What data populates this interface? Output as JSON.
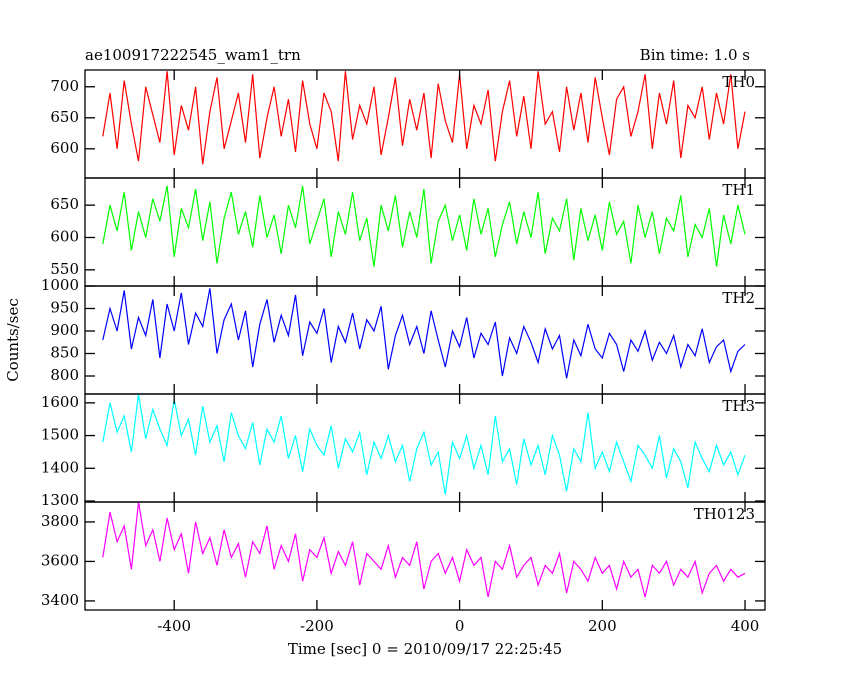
{
  "chart_data": {
    "type": "line",
    "title": "ae100917222545_wam1_trn",
    "subtitle": "Bin time: 1.0 s",
    "x_label": "Time [sec] 0 = 2010/09/17 22:25:45",
    "y_label": "Counts/sec",
    "xlim": [
      -525,
      428
    ],
    "xticks": [
      -400,
      -200,
      0,
      200,
      400
    ],
    "x": [
      -500,
      -490,
      -480,
      -470,
      -460,
      -450,
      -440,
      -430,
      -420,
      -410,
      -400,
      -390,
      -380,
      -370,
      -360,
      -350,
      -340,
      -330,
      -320,
      -310,
      -300,
      -290,
      -280,
      -270,
      -260,
      -250,
      -240,
      -230,
      -220,
      -210,
      -200,
      -190,
      -180,
      -170,
      -160,
      -150,
      -140,
      -130,
      -120,
      -110,
      -100,
      -90,
      -80,
      -70,
      -60,
      -50,
      -40,
      -30,
      -20,
      -10,
      0,
      10,
      20,
      30,
      40,
      50,
      60,
      70,
      80,
      90,
      100,
      110,
      120,
      130,
      140,
      150,
      160,
      170,
      180,
      190,
      200,
      210,
      220,
      230,
      240,
      250,
      260,
      270,
      280,
      290,
      300,
      310,
      320,
      330,
      340,
      350,
      360,
      370,
      380,
      390,
      400
    ],
    "series": [
      {
        "name": "TH0",
        "color": "#ff0000",
        "ylim": [
          553,
          727
        ],
        "yticks": [
          600,
          650,
          700
        ],
        "values": [
          620,
          690,
          600,
          710,
          640,
          580,
          700,
          655,
          610,
          725,
          590,
          670,
          630,
          700,
          575,
          660,
          715,
          600,
          645,
          690,
          610,
          720,
          585,
          650,
          700,
          620,
          680,
          595,
          710,
          640,
          600,
          690,
          660,
          580,
          725,
          615,
          670,
          640,
          700,
          590,
          650,
          715,
          605,
          680,
          630,
          690,
          585,
          705,
          645,
          610,
          720,
          600,
          670,
          640,
          695,
          580,
          660,
          710,
          620,
          685,
          600,
          725,
          640,
          660,
          595,
          700,
          630,
          690,
          610,
          715,
          650,
          590,
          680,
          700,
          620,
          660,
          720,
          600,
          690,
          640,
          710,
          585,
          670,
          650,
          700,
          615,
          690,
          640,
          720,
          600,
          660
        ]
      },
      {
        "name": "TH1",
        "color": "#00ff00",
        "ylim": [
          525,
          692
        ],
        "yticks": [
          550,
          600,
          650
        ],
        "values": [
          590,
          650,
          610,
          670,
          580,
          640,
          600,
          660,
          625,
          680,
          570,
          645,
          615,
          675,
          595,
          655,
          560,
          630,
          670,
          605,
          640,
          585,
          665,
          600,
          635,
          575,
          650,
          615,
          680,
          590,
          625,
          660,
          570,
          640,
          605,
          670,
          595,
          630,
          555,
          650,
          610,
          665,
          585,
          640,
          600,
          675,
          560,
          625,
          650,
          595,
          635,
          580,
          660,
          605,
          645,
          570,
          620,
          655,
          590,
          640,
          600,
          670,
          575,
          630,
          610,
          660,
          565,
          645,
          595,
          635,
          580,
          655,
          605,
          625,
          560,
          650,
          600,
          640,
          575,
          630,
          610,
          665,
          570,
          620,
          600,
          645,
          555,
          635,
          590,
          650,
          605
        ]
      },
      {
        "name": "TH2",
        "color": "#0000ff",
        "ylim": [
          760,
          1000
        ],
        "yticks": [
          800,
          850,
          900,
          950,
          1000
        ],
        "values": [
          880,
          950,
          900,
          990,
          860,
          930,
          890,
          970,
          840,
          960,
          900,
          985,
          870,
          940,
          910,
          995,
          850,
          925,
          960,
          880,
          945,
          820,
          915,
          970,
          875,
          935,
          890,
          980,
          845,
          920,
          895,
          950,
          830,
          910,
          875,
          940,
          860,
          925,
          900,
          955,
          815,
          890,
          935,
          870,
          910,
          850,
          945,
          880,
          820,
          900,
          865,
          930,
          840,
          895,
          870,
          920,
          800,
          885,
          850,
          910,
          875,
          830,
          905,
          860,
          890,
          795,
          880,
          845,
          915,
          860,
          840,
          895,
          870,
          810,
          880,
          855,
          900,
          835,
          875,
          850,
          890,
          820,
          870,
          845,
          905,
          830,
          865,
          880,
          810,
          855,
          870
        ]
      },
      {
        "name": "TH3",
        "color": "#00ffff",
        "ylim": [
          1297,
          1627
        ],
        "yticks": [
          1300,
          1400,
          1500,
          1600
        ],
        "values": [
          1480,
          1600,
          1510,
          1560,
          1450,
          1627,
          1490,
          1580,
          1520,
          1470,
          1610,
          1500,
          1550,
          1440,
          1590,
          1480,
          1530,
          1420,
          1570,
          1500,
          1460,
          1540,
          1410,
          1520,
          1480,
          1560,
          1430,
          1500,
          1390,
          1520,
          1470,
          1440,
          1530,
          1400,
          1490,
          1450,
          1510,
          1380,
          1480,
          1430,
          1500,
          1420,
          1470,
          1360,
          1460,
          1510,
          1410,
          1450,
          1320,
          1480,
          1430,
          1500,
          1400,
          1470,
          1380,
          1560,
          1420,
          1460,
          1350,
          1490,
          1410,
          1470,
          1380,
          1500,
          1440,
          1330,
          1460,
          1420,
          1570,
          1400,
          1450,
          1390,
          1480,
          1420,
          1360,
          1470,
          1440,
          1400,
          1500,
          1370,
          1460,
          1420,
          1340,
          1480,
          1430,
          1390,
          1470,
          1410,
          1450,
          1380,
          1440
        ]
      },
      {
        "name": "TH0123",
        "color": "#ff00ff",
        "ylim": [
          3354,
          3901
        ],
        "yticks": [
          3400,
          3600,
          3800
        ],
        "values": [
          3620,
          3850,
          3700,
          3780,
          3560,
          3900,
          3680,
          3760,
          3600,
          3820,
          3660,
          3740,
          3540,
          3800,
          3640,
          3720,
          3580,
          3760,
          3620,
          3690,
          3520,
          3700,
          3640,
          3780,
          3560,
          3680,
          3600,
          3740,
          3500,
          3660,
          3620,
          3720,
          3540,
          3650,
          3580,
          3700,
          3480,
          3640,
          3600,
          3560,
          3680,
          3520,
          3620,
          3580,
          3700,
          3460,
          3600,
          3640,
          3540,
          3620,
          3500,
          3660,
          3580,
          3620,
          3420,
          3600,
          3560,
          3680,
          3520,
          3580,
          3620,
          3480,
          3580,
          3540,
          3640,
          3440,
          3600,
          3560,
          3500,
          3620,
          3540,
          3580,
          3460,
          3600,
          3520,
          3560,
          3420,
          3580,
          3540,
          3600,
          3480,
          3560,
          3520,
          3600,
          3440,
          3540,
          3580,
          3500,
          3560,
          3520,
          3540
        ]
      }
    ]
  }
}
